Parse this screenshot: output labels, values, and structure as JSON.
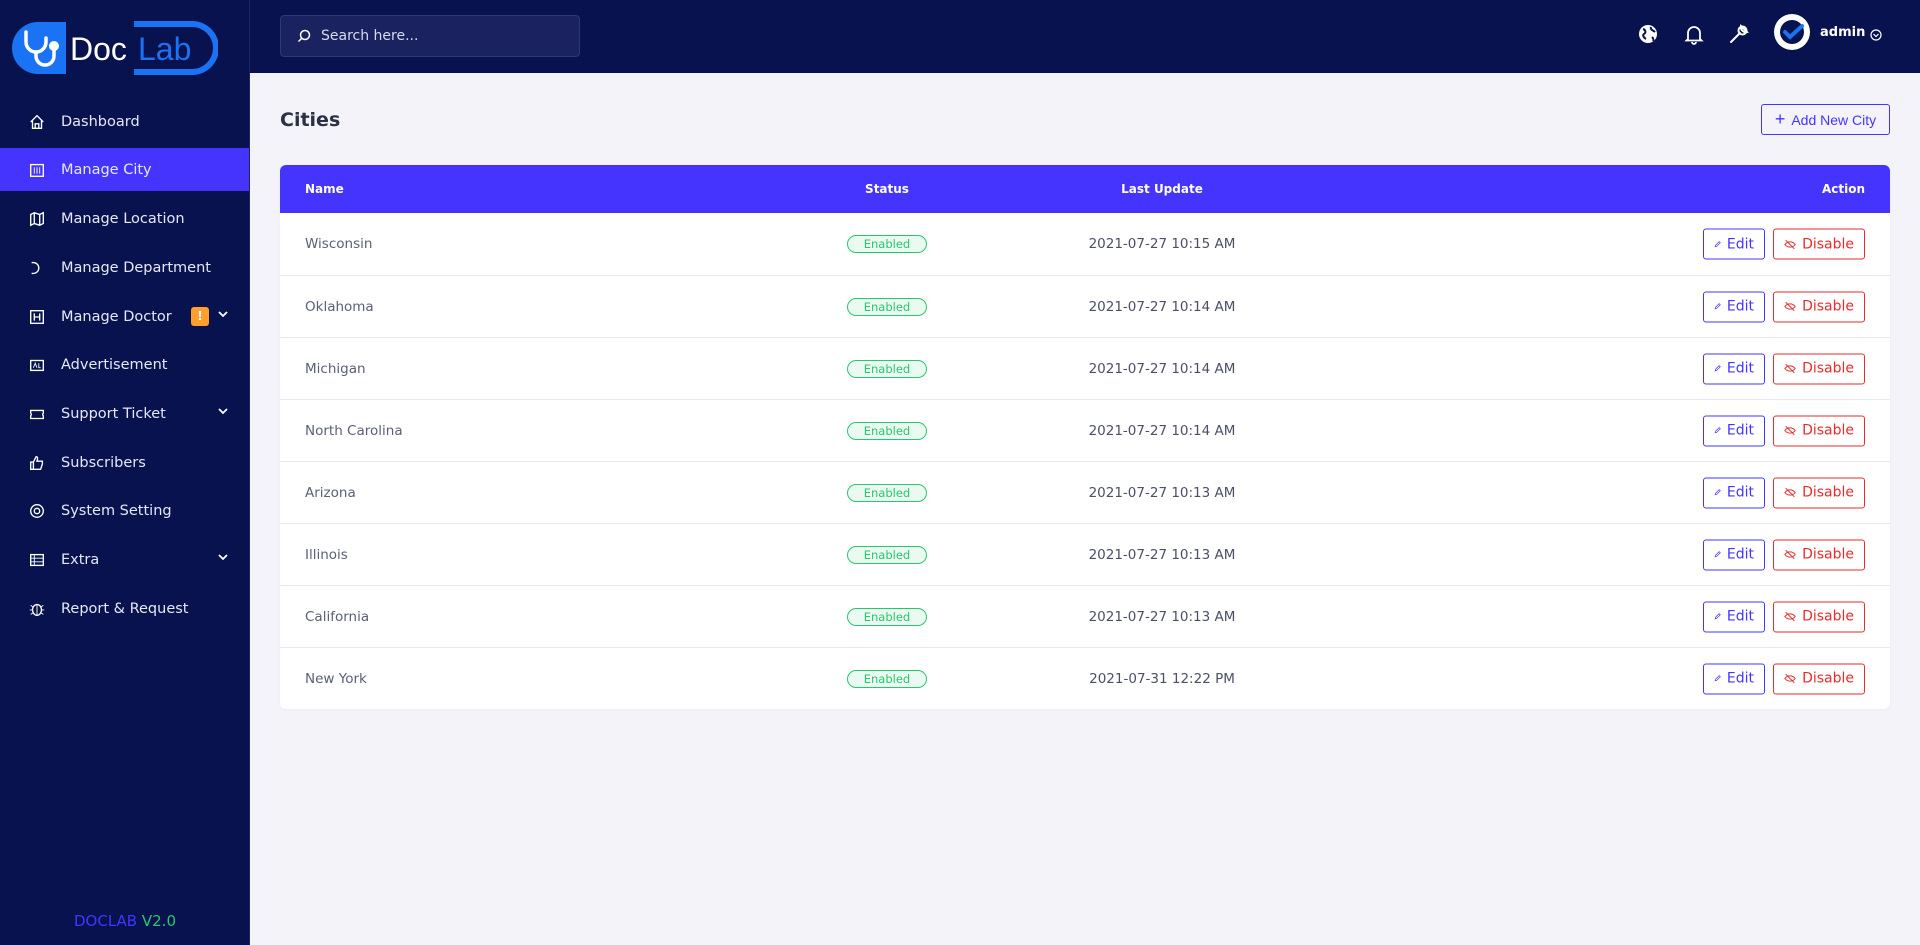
{
  "brand": {
    "logo_text_1": "Doc",
    "logo_text_2": "Lab",
    "version_name": "DOCLAB",
    "version_num": "V2.0",
    "colors": {
      "sidebar": "#08124f",
      "accent": "#4534fd",
      "logo": "#1a73f5",
      "success": "#28c76f",
      "danger": "#ea2b2b",
      "warning": "#ff9f2e"
    }
  },
  "search": {
    "placeholder": "Search here..."
  },
  "user": {
    "name": "admin"
  },
  "sidebar": {
    "items": [
      {
        "label": "Dashboard",
        "icon": "home-icon"
      },
      {
        "label": "Manage City",
        "icon": "building-icon",
        "active": true
      },
      {
        "label": "Manage Location",
        "icon": "map-icon"
      },
      {
        "label": "Manage Department",
        "icon": "department-icon"
      },
      {
        "label": "Manage Doctor",
        "icon": "hospital-icon",
        "badge": "!",
        "expandable": true
      },
      {
        "label": "Advertisement",
        "icon": "ad-icon"
      },
      {
        "label": "Support Ticket",
        "icon": "ticket-icon",
        "expandable": true
      },
      {
        "label": "Subscribers",
        "icon": "thumbs-up-icon"
      },
      {
        "label": "System Setting",
        "icon": "settings-icon"
      },
      {
        "label": "Extra",
        "icon": "list-icon",
        "expandable": true
      },
      {
        "label": "Report & Request",
        "icon": "bug-icon"
      }
    ]
  },
  "page": {
    "title": "Cities",
    "add_button": "Add New City"
  },
  "table": {
    "columns": [
      "Name",
      "Status",
      "Last Update",
      "Action"
    ],
    "edit_label": "Edit",
    "disable_label": "Disable",
    "rows": [
      {
        "name": "Wisconsin",
        "status": "Enabled",
        "updated": "2021-07-27 10:15 AM"
      },
      {
        "name": "Oklahoma",
        "status": "Enabled",
        "updated": "2021-07-27 10:14 AM"
      },
      {
        "name": "Michigan",
        "status": "Enabled",
        "updated": "2021-07-27 10:14 AM"
      },
      {
        "name": "North Carolina",
        "status": "Enabled",
        "updated": "2021-07-27 10:14 AM"
      },
      {
        "name": "Arizona",
        "status": "Enabled",
        "updated": "2021-07-27 10:13 AM"
      },
      {
        "name": "Illinois",
        "status": "Enabled",
        "updated": "2021-07-27 10:13 AM"
      },
      {
        "name": "California",
        "status": "Enabled",
        "updated": "2021-07-27 10:13 AM"
      },
      {
        "name": "New York",
        "status": "Enabled",
        "updated": "2021-07-31 12:22 PM"
      }
    ]
  }
}
